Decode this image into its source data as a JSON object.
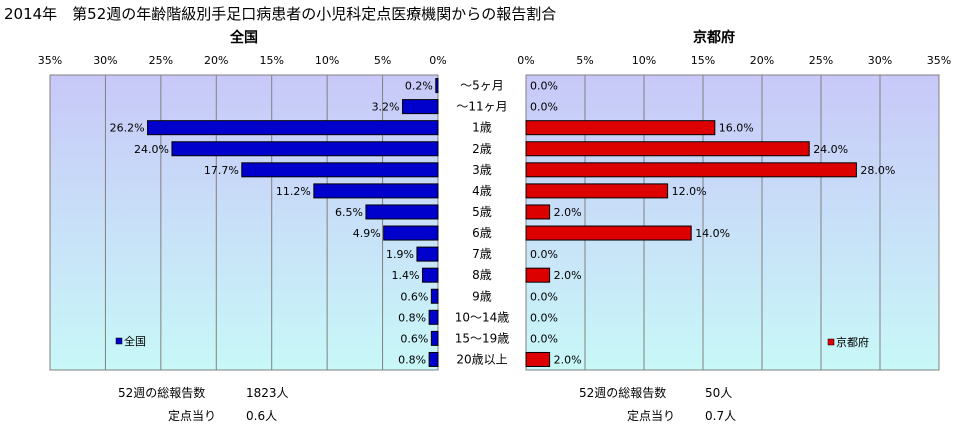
{
  "page_title": "2014年　第52週の年齢階級別手足口病患者の小児科定点医療機関からの報告割合",
  "chart_data": [
    {
      "type": "bar",
      "title": "全国",
      "orientation": "horizontal",
      "direction": "right-to-left",
      "xlim": [
        0,
        35
      ],
      "ticks": [
        "35%",
        "30%",
        "25%",
        "20%",
        "15%",
        "10%",
        "5%",
        "0%"
      ],
      "grid": true,
      "legend": "bottom-left",
      "series": [
        {
          "name": "全国",
          "color": "#0000cc",
          "values": [
            0.2,
            3.2,
            26.2,
            24.0,
            17.7,
            11.2,
            6.5,
            4.9,
            1.9,
            1.4,
            0.6,
            0.8,
            0.6,
            0.8
          ],
          "labels": [
            "0.2%",
            "3.2%",
            "26.2%",
            "24.0%",
            "17.7%",
            "11.2%",
            "6.5%",
            "4.9%",
            "1.9%",
            "1.4%",
            "0.6%",
            "0.8%",
            "0.6%",
            "0.8%"
          ]
        }
      ],
      "summary": [
        {
          "label": "52週の総報告数",
          "value": "1823人"
        },
        {
          "label": "定点当り",
          "value": "0.6人"
        }
      ]
    },
    {
      "type": "bar",
      "title": "京都府",
      "orientation": "horizontal",
      "direction": "left-to-right",
      "xlim": [
        0,
        35
      ],
      "ticks": [
        "0%",
        "5%",
        "10%",
        "15%",
        "20%",
        "25%",
        "30%",
        "35%"
      ],
      "grid": true,
      "legend": "bottom-right",
      "series": [
        {
          "name": "京都府",
          "color": "#dd0000",
          "values": [
            0.0,
            0.0,
            16.0,
            24.0,
            28.0,
            12.0,
            2.0,
            14.0,
            0.0,
            2.0,
            0.0,
            0.0,
            0.0,
            2.0
          ],
          "labels": [
            "0.0%",
            "0.0%",
            "16.0%",
            "24.0%",
            "28.0%",
            "12.0%",
            "2.0%",
            "14.0%",
            "0.0%",
            "2.0%",
            "0.0%",
            "0.0%",
            "0.0%",
            "2.0%"
          ]
        }
      ],
      "summary": [
        {
          "label": "52週の総報告数",
          "value": "50人"
        },
        {
          "label": "定点当り",
          "value": "0.7人"
        }
      ]
    }
  ],
  "categories": [
    "～5ヶ月",
    "～11ヶ月",
    "1歳",
    "2歳",
    "3歳",
    "4歳",
    "5歳",
    "6歳",
    "7歳",
    "8歳",
    "9歳",
    "10～14歳",
    "15～19歳",
    "20歳以上"
  ],
  "colors": {
    "plot_bg_top": "#c8c8f8",
    "plot_bg_bottom": "#c8f8f8",
    "grid": "#808080"
  }
}
